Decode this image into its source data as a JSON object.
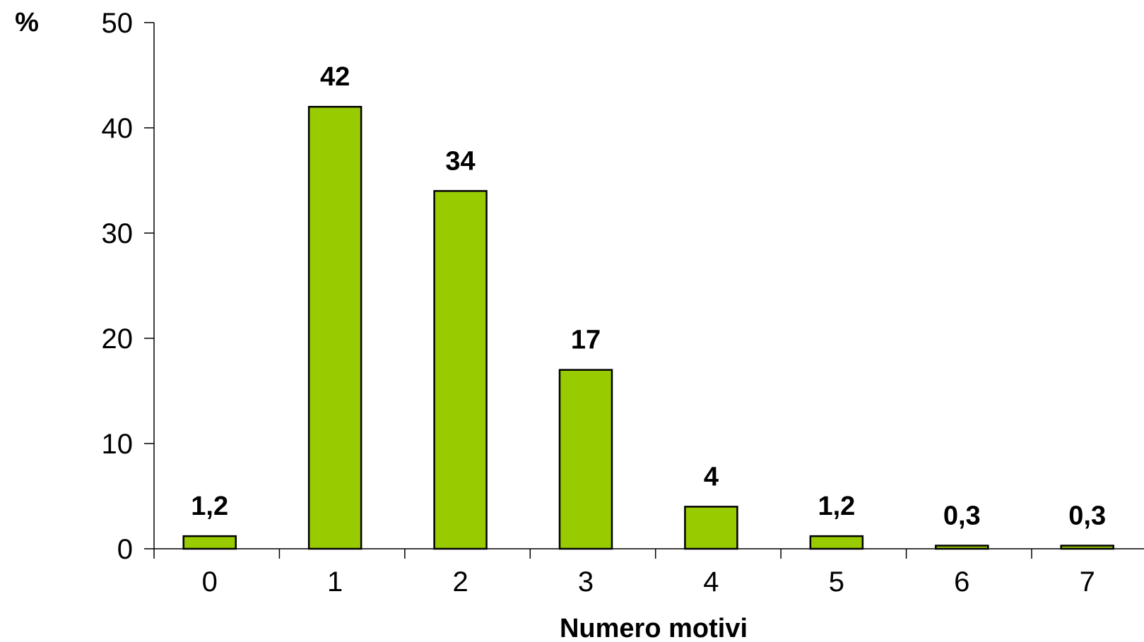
{
  "chart_data": {
    "type": "bar",
    "categories": [
      "0",
      "1",
      "2",
      "3",
      "4",
      "5",
      "6",
      "7"
    ],
    "values": [
      1.2,
      42,
      34,
      17,
      4,
      1.2,
      0.3,
      0.3
    ],
    "value_labels": [
      "1,2",
      "42",
      "34",
      "17",
      "4",
      "1,2",
      "0,3",
      "0,3"
    ],
    "xlabel": "Numero motivi",
    "ylabel": "%",
    "ylim": [
      0,
      50
    ],
    "yticks": [
      0,
      10,
      20,
      30,
      40,
      50
    ],
    "grid": false,
    "bar_color": "#99cc00",
    "bar_edge_color": "#000000"
  }
}
